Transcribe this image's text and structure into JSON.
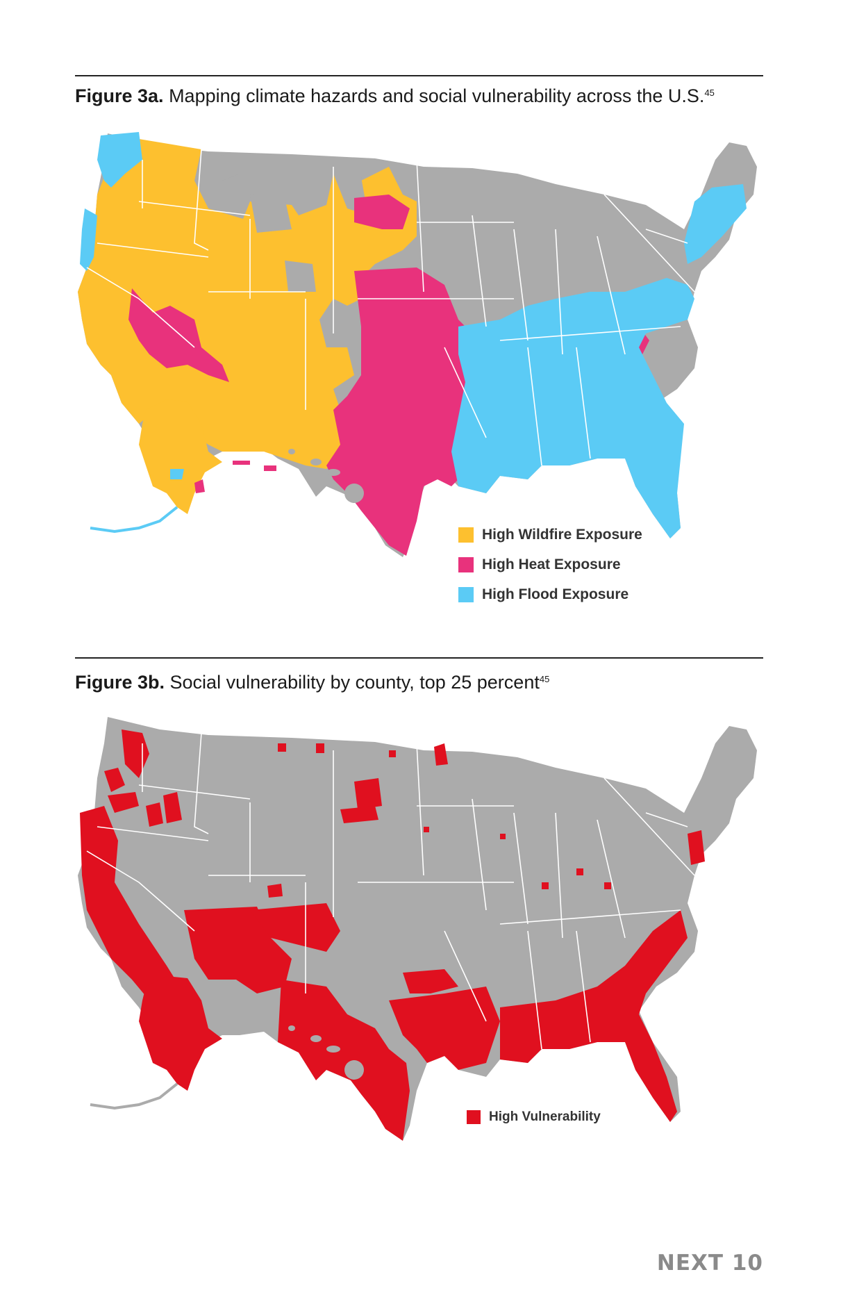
{
  "figure_a": {
    "label": "Figure 3a.",
    "title": "Mapping climate hazards and social vulnerability across the U.S.",
    "ref": "45",
    "legend": [
      {
        "label": "High Wildfire Exposure",
        "color": "#FDC02F"
      },
      {
        "label": "High Heat Exposure",
        "color": "#E8327C"
      },
      {
        "label": "High Flood Exposure",
        "color": "#5BCBF5"
      }
    ]
  },
  "figure_b": {
    "label": "Figure 3b.",
    "title": "Social vulnerability by county, top 25 percent",
    "ref": "45",
    "legend": [
      {
        "label": "High Vulnerability",
        "color": "#E0101F"
      }
    ]
  },
  "base_color": "#ABABAB",
  "footer": "NEXT 10"
}
